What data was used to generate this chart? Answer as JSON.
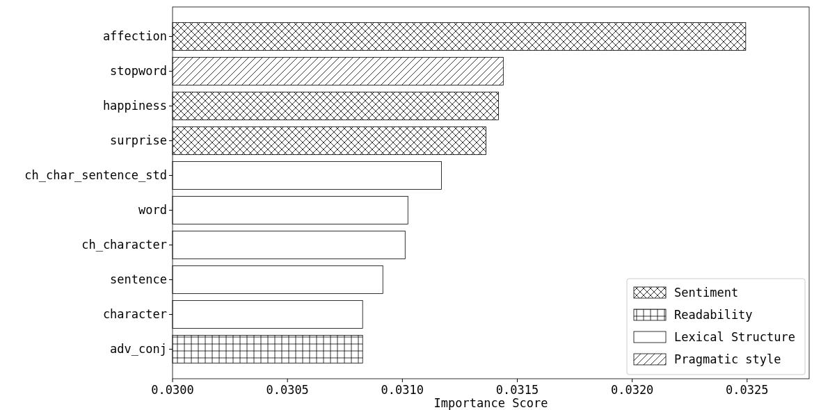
{
  "chart_data": {
    "type": "bar",
    "orientation": "horizontal",
    "stacked": true,
    "xlabel": "Importance Score",
    "categories": [
      "affection",
      "stopword",
      "happiness",
      "surprise",
      "ch_char_sentence_std",
      "word",
      "ch_character",
      "sentence",
      "character",
      "adv_conj"
    ],
    "series": [
      {
        "name": "Sentiment",
        "color": "#ffffff",
        "values": [
          0.032494,
          null,
          0.031418,
          0.031364,
          null,
          null,
          null,
          null,
          null,
          null
        ]
      },
      {
        "name": "Readability",
        "color": "#ffffff",
        "values": [
          null,
          null,
          null,
          null,
          null,
          null,
          null,
          null,
          null,
          0.030827
        ]
      },
      {
        "name": "Lexical Structure",
        "color": "#ffffff",
        "values": [
          null,
          null,
          null,
          null,
          0.03117,
          0.031024,
          0.031012,
          0.030915,
          0.030827,
          null
        ]
      },
      {
        "name": "Pragmatic style",
        "color": "#ffffff",
        "values": [
          null,
          0.031439,
          null,
          null,
          null,
          null,
          null,
          null,
          null,
          null
        ]
      }
    ],
    "xlim": [
      0.03,
      0.03277
    ],
    "xticks": [
      {
        "value": 0.03,
        "label": "0.0300"
      },
      {
        "value": 0.0305,
        "label": "0.0305"
      },
      {
        "value": 0.031,
        "label": "0.0310"
      },
      {
        "value": 0.0315,
        "label": "0.0315"
      },
      {
        "value": 0.032,
        "label": "0.0320"
      },
      {
        "value": 0.0325,
        "label": "0.0325"
      }
    ],
    "legend": "bottom right",
    "grid": false
  }
}
